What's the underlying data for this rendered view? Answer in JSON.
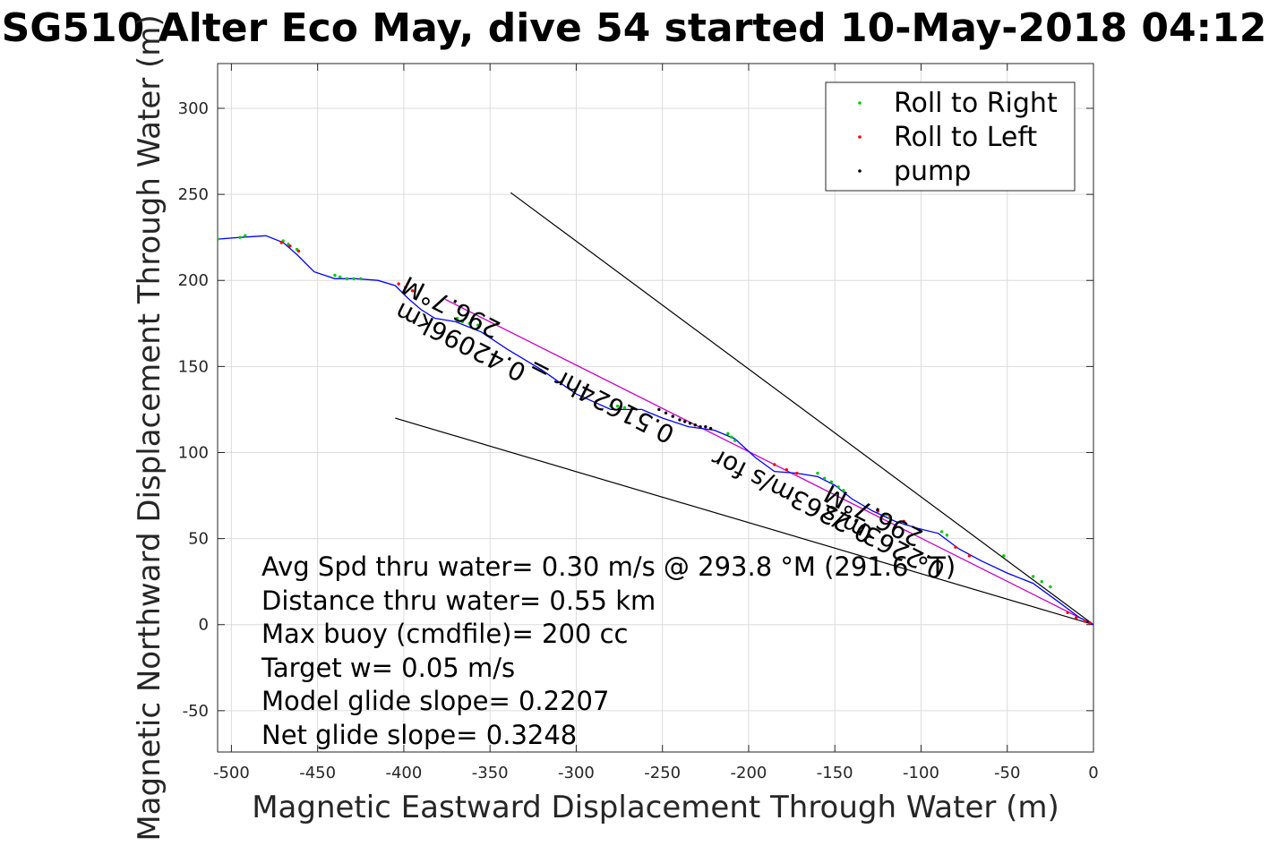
{
  "chart_data": {
    "type": "line",
    "title": "SG510 Alter Eco May, dive 54 started 10-May-2018 04:12",
    "xlabel": "Magnetic Eastward Displacement Through Water (m)",
    "ylabel": "Magnetic Northward Displacement Through Water (m)",
    "xlim": [
      -508,
      0
    ],
    "ylim": [
      -74,
      326
    ],
    "xticks": [
      -500,
      -450,
      -400,
      -350,
      -300,
      -250,
      -200,
      -150,
      -100,
      -50,
      0
    ],
    "yticks": [
      -50,
      0,
      50,
      100,
      150,
      200,
      250,
      300
    ],
    "grid": true,
    "legend": {
      "placement": "top-right",
      "entries": [
        {
          "label": "Roll to Right",
          "color": "#00cc00"
        },
        {
          "label": "Roll to Left",
          "color": "#ff0000"
        },
        {
          "label": "pump",
          "color": "#000000"
        }
      ]
    },
    "track": {
      "color": "#0000ff",
      "x": [
        -508,
        -495,
        -480,
        -470,
        -462,
        -452,
        -440,
        -428,
        -415,
        -405,
        -398,
        -390,
        -382,
        -370,
        -355,
        -340,
        -320,
        -300,
        -280,
        -262,
        -250,
        -235,
        -220,
        -208,
        -196,
        -185,
        -172,
        -160,
        -150,
        -140,
        -128,
        -115,
        -102,
        -90,
        -78,
        -65,
        -50,
        -35,
        -20,
        -8,
        0
      ],
      "y": [
        224,
        225,
        226,
        222,
        215,
        205,
        201,
        201,
        200,
        197,
        190,
        183,
        178,
        176,
        170,
        160,
        148,
        134,
        125,
        125,
        120,
        115,
        113,
        108,
        97,
        89,
        88,
        86,
        81,
        73,
        66,
        60,
        56,
        53,
        44,
        37,
        30,
        24,
        13,
        4,
        0
      ]
    },
    "roll_right": {
      "color": "#00cc00",
      "x": [
        -508,
        -495,
        -492,
        -470,
        -467,
        -462,
        -440,
        -437,
        -433,
        -429,
        -425,
        -369,
        -366,
        -362,
        -357,
        -280,
        -276,
        -272,
        -212,
        -210,
        -208,
        -160,
        -156,
        -152,
        -148,
        -145,
        -120,
        -118,
        -88,
        -85,
        -52,
        -35,
        -30,
        -25
      ],
      "y": [
        224,
        225,
        226,
        223,
        221,
        218,
        203,
        202,
        201,
        201,
        201,
        178,
        176,
        175,
        174,
        127,
        127,
        126,
        111,
        109,
        107,
        88,
        85,
        83,
        80,
        78,
        64,
        62,
        54,
        52,
        40,
        28,
        25,
        22
      ]
    },
    "roll_left": {
      "color": "#ff0000",
      "x": [
        -471,
        -466,
        -461,
        -403,
        -399,
        -395,
        -185,
        -178,
        -172,
        -125,
        -118,
        -110,
        -80,
        -72,
        -15,
        -10,
        -5,
        -2
      ],
      "y": [
        222,
        220,
        217,
        198,
        196,
        194,
        93,
        90,
        88,
        66,
        63,
        60,
        45,
        40,
        7,
        4,
        2,
        1
      ]
    },
    "pump": {
      "color": "#000000",
      "x": [
        -252,
        -248,
        -244,
        -240,
        -237,
        -234,
        -231,
        -228,
        -225,
        -222
      ],
      "y": [
        125,
        123,
        121,
        119,
        118,
        117,
        116,
        115,
        115,
        114
      ]
    },
    "fit_line": {
      "color": "#cc00cc",
      "x": [
        -376,
        0
      ],
      "y": [
        189,
        0
      ]
    },
    "cone_lines": [
      {
        "color": "#000000",
        "x": [
          -338,
          0
        ],
        "y": [
          251,
          0
        ]
      },
      {
        "color": "#000000",
        "x": [
          -405,
          0
        ],
        "y": [
          120,
          0
        ]
      }
    ],
    "rotated_labels": [
      {
        "text": "296.7°M",
        "x": -343,
        "y": 175,
        "angle": 26.9
      },
      {
        "text": "0.42096km",
        "x": -328,
        "y": 150,
        "angle": 26.9
      },
      {
        "text": "0.51624hr =",
        "x": -242,
        "y": 114,
        "angle": 26.9
      },
      {
        "text": "0.2263m/s for",
        "x": -127,
        "y": 56,
        "angle": 26.9
      },
      {
        "text": "296.7°M",
        "x": -98,
        "y": 54,
        "angle": 26.9
      },
      {
        "text": "0.2263m/s",
        "x": -85,
        "y": 35,
        "angle": 26.9
      }
    ],
    "annotations": [
      "Avg Spd thru water=  0.30 m/s @ 293.8 °M (291.6 °T)",
      "Distance thru water=  0.55 km",
      "Max buoy (cmdfile)= 200 cc",
      "Target w= 0.05 m/s",
      "Model glide slope= 0.2207",
      "Net glide slope= 0.3248"
    ]
  }
}
